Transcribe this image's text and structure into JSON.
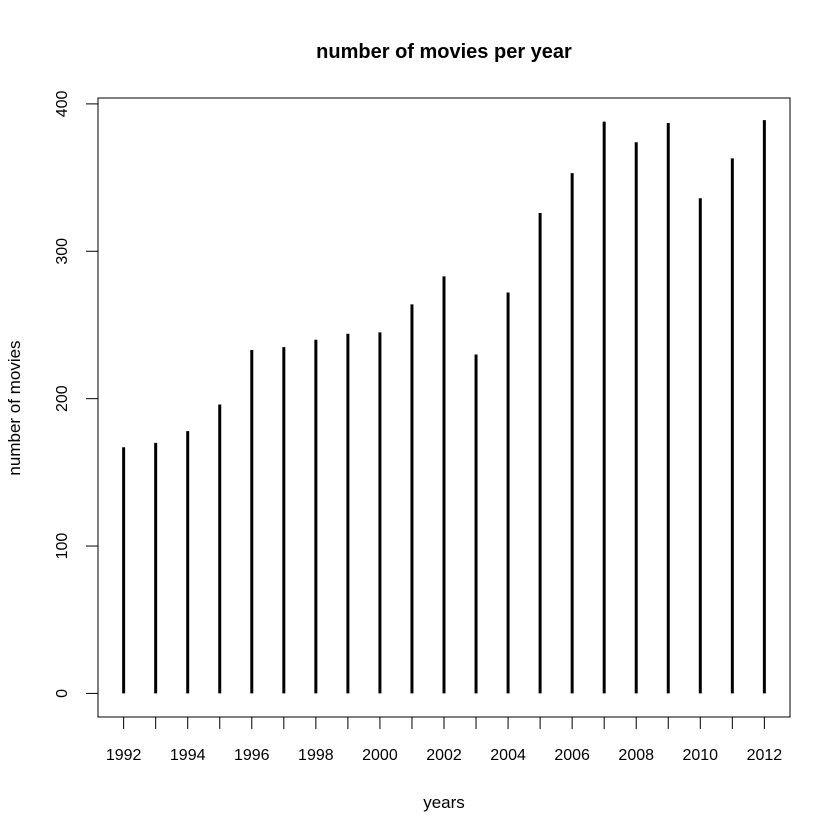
{
  "chart_data": {
    "type": "bar",
    "title": "number of movies per year",
    "xlabel": "years",
    "ylabel": "number of movies",
    "x": [
      1992,
      1993,
      1994,
      1995,
      1996,
      1997,
      1998,
      1999,
      2000,
      2001,
      2002,
      2003,
      2004,
      2005,
      2006,
      2007,
      2008,
      2009,
      2010,
      2011,
      2012
    ],
    "values": [
      167,
      170,
      178,
      196,
      233,
      235,
      240,
      244,
      245,
      264,
      283,
      230,
      272,
      326,
      353,
      388,
      374,
      387,
      336,
      363,
      389
    ],
    "xlim": [
      1991.2,
      2012.8
    ],
    "ylim": [
      -16,
      404
    ],
    "x_ticks": [
      1992,
      1993,
      1994,
      1995,
      1996,
      1997,
      1998,
      1999,
      2000,
      2001,
      2002,
      2003,
      2004,
      2005,
      2006,
      2007,
      2008,
      2009,
      2010,
      2011,
      2012
    ],
    "x_tick_labels": [
      "1992",
      "",
      "1994",
      "",
      "1996",
      "",
      "1998",
      "",
      "2000",
      "",
      "2002",
      "",
      "2004",
      "",
      "2006",
      "",
      "2008",
      "",
      "2010",
      "",
      "2012"
    ],
    "y_ticks": [
      0,
      100,
      200,
      300,
      400
    ],
    "y_tick_labels": [
      "0",
      "100",
      "200",
      "300",
      "400"
    ],
    "grid": false,
    "legend": "none",
    "bar_style": "thin vertical lines (histogram-like)",
    "color": "#000000"
  }
}
